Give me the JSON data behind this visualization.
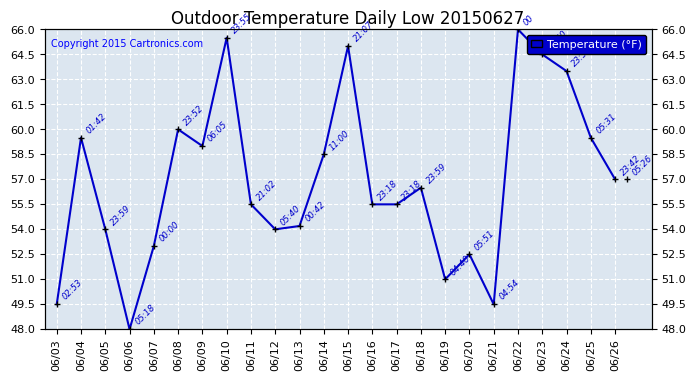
{
  "title": "Outdoor Temperature Daily Low 20150627",
  "copyright": "Copyright 2015 Cartronics.com",
  "legend_label": "Temperature (°F)",
  "ylim": [
    48.0,
    66.0
  ],
  "yticks": [
    48.0,
    49.5,
    51.0,
    52.5,
    54.0,
    55.5,
    57.0,
    58.5,
    60.0,
    61.5,
    63.0,
    64.5,
    66.0
  ],
  "background_color": "#dce6f0",
  "plot_bg_color": "#dce6f0",
  "line_color": "#0000cc",
  "grid_color": "#ffffff",
  "dates": [
    "06/03",
    "06/04",
    "06/05",
    "06/06",
    "06/07",
    "06/08",
    "06/09",
    "06/10",
    "06/11",
    "06/12",
    "06/13",
    "06/14",
    "06/15",
    "06/16",
    "06/17",
    "06/18",
    "06/19",
    "06/20",
    "06/21",
    "06/22",
    "06/23",
    "06/24",
    "06/25",
    "06/26"
  ],
  "values": [
    49.5,
    59.5,
    54.0,
    48.0,
    53.0,
    60.0,
    59.0,
    65.5,
    55.5,
    54.0,
    54.2,
    58.5,
    65.0,
    55.5,
    55.5,
    56.5,
    51.0,
    52.5,
    49.5,
    66.0,
    64.5,
    63.5,
    59.5,
    57.0
  ],
  "times": [
    "02:53",
    "01:42",
    "23:59",
    "05:18",
    "00:00",
    "23:52",
    "06:05",
    "23:55",
    "21:02",
    "05:40",
    "00:42",
    "11:00",
    "21:07",
    "23:18",
    "23:18",
    "23:59",
    "04:40",
    "05:51",
    "04:54",
    "00",
    "17:50",
    "23:53",
    "05:31",
    "23:42"
  ],
  "extra_value": 57.0,
  "extra_time": "05:26",
  "title_fontsize": 12,
  "tick_fontsize": 8,
  "annot_fontsize": 6,
  "copyright_fontsize": 7,
  "legend_fontsize": 8,
  "line_width": 1.5,
  "marker_size": 5
}
